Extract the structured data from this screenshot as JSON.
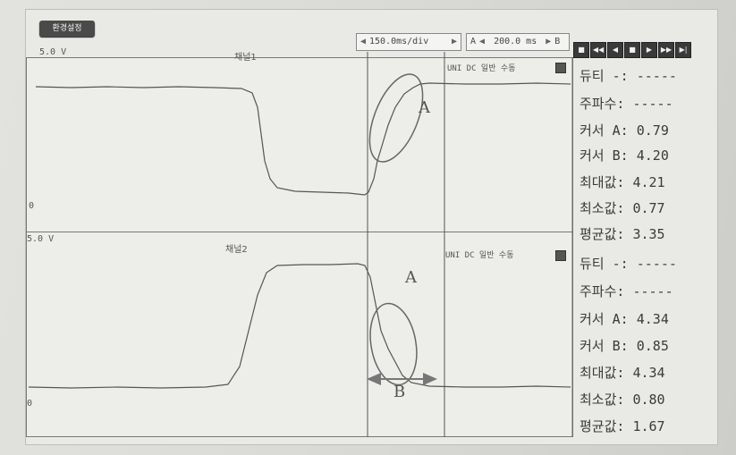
{
  "toolbar": {
    "setup_label": "환경설정",
    "time_div": "150.0ms/div",
    "cursor_label_a": "A",
    "cursor_delta": "200.0 ms",
    "cursor_label_b": "B"
  },
  "media_buttons": [
    "stop-icon",
    "rewind-icon",
    "prev-icon",
    "pause-icon",
    "play-icon",
    "forward-icon",
    "end-icon"
  ],
  "channel1": {
    "name": "채널1",
    "scale_top": "5.0 V",
    "scale_zero": "0",
    "modes": "UNI DC  일반  수동",
    "cursor_a_mark": "A",
    "cursor_b_mark": "B",
    "annotation": "A",
    "readouts": [
      {
        "label": "듀티 -:",
        "value": "-----"
      },
      {
        "label": "주파수:",
        "value": "-----"
      },
      {
        "label": "커서 A:",
        "value": "0.79"
      },
      {
        "label": "커서 B:",
        "value": "4.20"
      },
      {
        "label": "최대값:",
        "value": "4.21"
      },
      {
        "label": "최소값:",
        "value": "0.77"
      },
      {
        "label": "평균값:",
        "value": "3.35"
      }
    ]
  },
  "channel2": {
    "name": "채널2",
    "scale_top": "5.0 V",
    "scale_zero": "0",
    "modes": "UNI DC  일반  수동",
    "annotation_a": "A",
    "annotation_b": "B",
    "readouts": [
      {
        "label": "듀티 -:",
        "value": "-----"
      },
      {
        "label": "주파수:",
        "value": "-----"
      },
      {
        "label": "커서 A:",
        "value": "4.34"
      },
      {
        "label": "커서 B:",
        "value": "0.85"
      },
      {
        "label": "최대값:",
        "value": "4.34"
      },
      {
        "label": "최소값:",
        "value": "0.80"
      },
      {
        "label": "평균값:",
        "value": "1.67"
      }
    ]
  }
}
